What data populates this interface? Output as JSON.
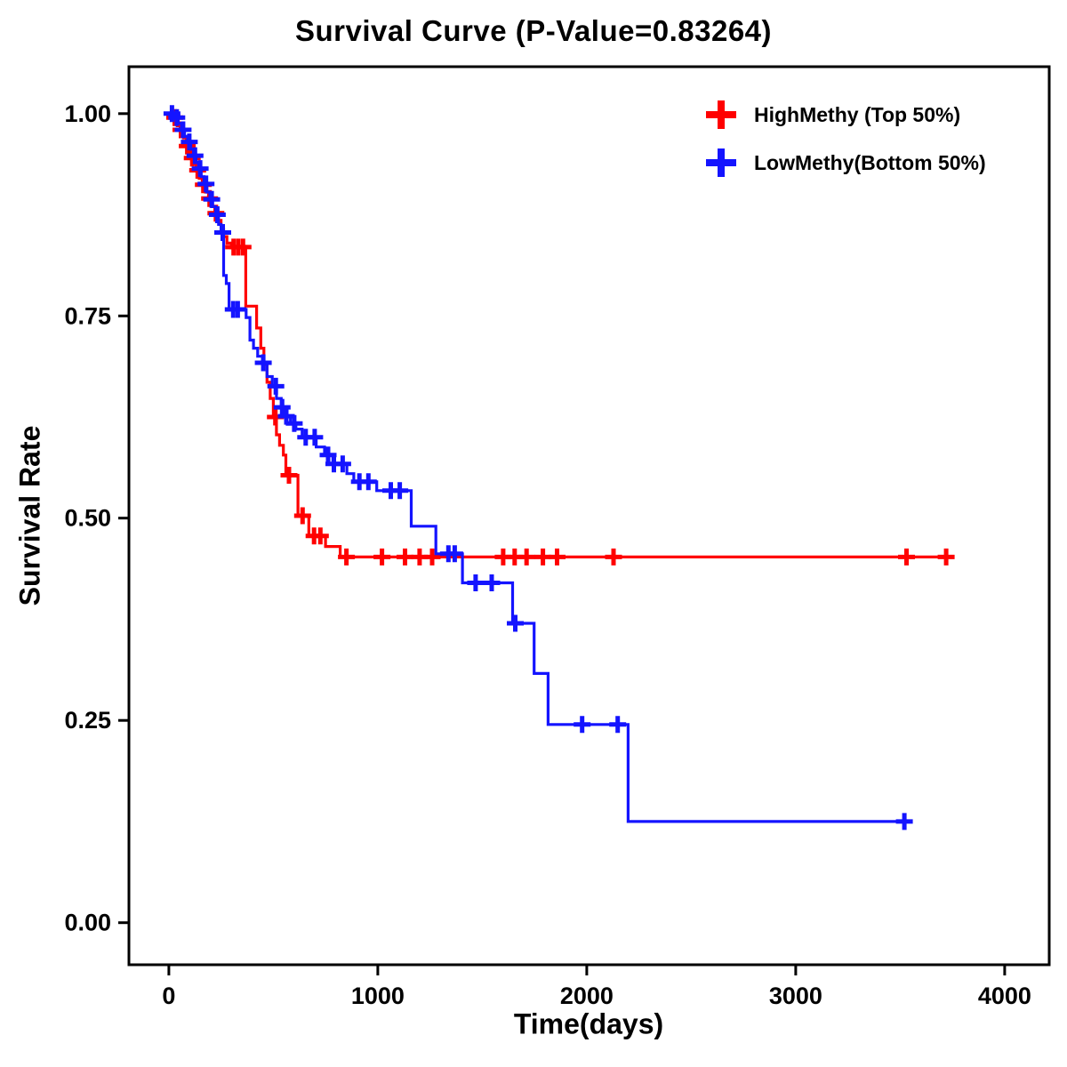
{
  "chart_data": {
    "type": "line",
    "subtype": "kaplan-meier-step-curve",
    "title": "Survival Curve (P-Value=0.83264)",
    "p_value": 0.83264,
    "xlabel": "Time(days)",
    "ylabel": "Survival Rate",
    "xlim": [
      -191,
      4213
    ],
    "ylim": [
      -0.052,
      1.058
    ],
    "grid": false,
    "legend_position": "top-right",
    "xticks": [
      {
        "v": 0,
        "label": "0"
      },
      {
        "v": 1000,
        "label": "1000"
      },
      {
        "v": 2000,
        "label": "2000"
      },
      {
        "v": 3000,
        "label": "3000"
      },
      {
        "v": 4000,
        "label": "4000"
      }
    ],
    "yticks": [
      {
        "v": 0.0,
        "label": "0.00"
      },
      {
        "v": 0.25,
        "label": "0.25"
      },
      {
        "v": 0.5,
        "label": "0.50"
      },
      {
        "v": 0.75,
        "label": "0.75"
      },
      {
        "v": 1.0,
        "label": "1.00"
      }
    ],
    "series": [
      {
        "name": "HighMethy (Top 50%)",
        "color": "#ff0000",
        "end_time": 3730,
        "steps": [
          [
            0,
            1.0
          ],
          [
            20,
            0.995
          ],
          [
            40,
            0.985
          ],
          [
            55,
            0.98
          ],
          [
            70,
            0.97
          ],
          [
            85,
            0.96
          ],
          [
            100,
            0.952
          ],
          [
            110,
            0.945
          ],
          [
            120,
            0.938
          ],
          [
            130,
            0.93
          ],
          [
            145,
            0.92
          ],
          [
            160,
            0.912
          ],
          [
            175,
            0.903
          ],
          [
            190,
            0.895
          ],
          [
            205,
            0.885
          ],
          [
            220,
            0.877
          ],
          [
            235,
            0.868
          ],
          [
            250,
            0.857
          ],
          [
            262,
            0.848
          ],
          [
            278,
            0.84
          ],
          [
            300,
            0.835
          ],
          [
            368,
            0.762
          ],
          [
            420,
            0.735
          ],
          [
            440,
            0.71
          ],
          [
            455,
            0.69
          ],
          [
            470,
            0.668
          ],
          [
            485,
            0.648
          ],
          [
            500,
            0.625
          ],
          [
            515,
            0.603
          ],
          [
            530,
            0.59
          ],
          [
            548,
            0.578
          ],
          [
            560,
            0.553
          ],
          [
            618,
            0.503
          ],
          [
            670,
            0.478
          ],
          [
            750,
            0.465
          ],
          [
            820,
            0.452
          ]
        ],
        "censor_times": [
          28,
          58,
          88,
          112,
          138,
          165,
          195,
          225,
          310,
          332,
          355,
          510,
          575,
          640,
          695,
          725,
          850,
          1020,
          1130,
          1200,
          1260,
          1600,
          1655,
          1712,
          1790,
          1858,
          2128,
          3530,
          3720
        ]
      },
      {
        "name": "LowMethy(Bottom 50%)",
        "color": "#1414ff",
        "end_time": 3525,
        "steps": [
          [
            0,
            1.0
          ],
          [
            25,
            0.995
          ],
          [
            45,
            0.988
          ],
          [
            60,
            0.98
          ],
          [
            75,
            0.972
          ],
          [
            90,
            0.965
          ],
          [
            105,
            0.956
          ],
          [
            118,
            0.948
          ],
          [
            130,
            0.94
          ],
          [
            142,
            0.932
          ],
          [
            155,
            0.922
          ],
          [
            168,
            0.913
          ],
          [
            182,
            0.903
          ],
          [
            196,
            0.894
          ],
          [
            210,
            0.885
          ],
          [
            224,
            0.875
          ],
          [
            238,
            0.863
          ],
          [
            250,
            0.853
          ],
          [
            262,
            0.8
          ],
          [
            275,
            0.79
          ],
          [
            288,
            0.758
          ],
          [
            370,
            0.748
          ],
          [
            388,
            0.72
          ],
          [
            405,
            0.71
          ],
          [
            425,
            0.7
          ],
          [
            448,
            0.692
          ],
          [
            470,
            0.675
          ],
          [
            495,
            0.663
          ],
          [
            515,
            0.648
          ],
          [
            538,
            0.637
          ],
          [
            558,
            0.626
          ],
          [
            582,
            0.617
          ],
          [
            608,
            0.61
          ],
          [
            638,
            0.6
          ],
          [
            705,
            0.588
          ],
          [
            745,
            0.578
          ],
          [
            785,
            0.567
          ],
          [
            852,
            0.555
          ],
          [
            885,
            0.545
          ],
          [
            995,
            0.534
          ],
          [
            1160,
            0.49
          ],
          [
            1278,
            0.456
          ],
          [
            1405,
            0.42
          ],
          [
            1645,
            0.37
          ],
          [
            1748,
            0.308
          ],
          [
            1815,
            0.245
          ],
          [
            2198,
            0.125
          ]
        ],
        "censor_times": [
          15,
          38,
          68,
          98,
          125,
          150,
          178,
          205,
          232,
          258,
          308,
          330,
          452,
          512,
          542,
          562,
          600,
          655,
          698,
          762,
          790,
          832,
          912,
          955,
          1062,
          1105,
          1338,
          1368,
          1468,
          1545,
          1658,
          1978,
          2148,
          3520
        ]
      }
    ]
  }
}
